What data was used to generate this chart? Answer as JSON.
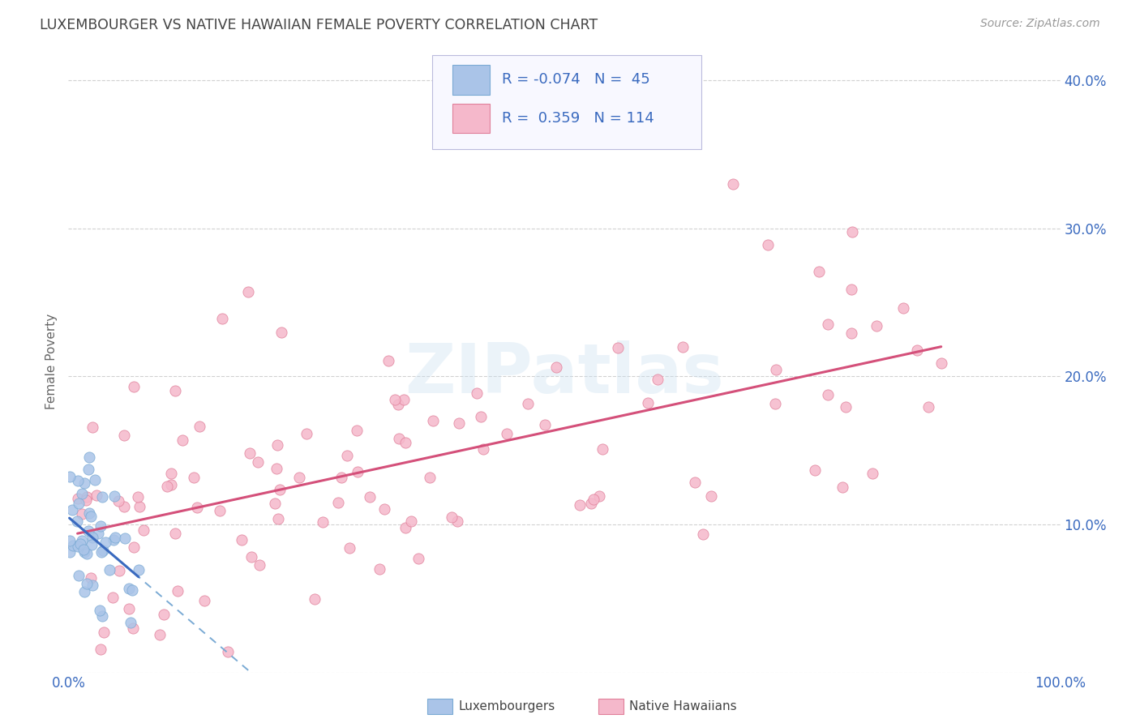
{
  "title": "LUXEMBOURGER VS NATIVE HAWAIIAN FEMALE POVERTY CORRELATION CHART",
  "source": "Source: ZipAtlas.com",
  "ylabel": "Female Poverty",
  "xlim": [
    0.0,
    1.0
  ],
  "ylim": [
    0.0,
    0.42
  ],
  "yticks": [
    0.0,
    0.1,
    0.2,
    0.3,
    0.4
  ],
  "right_ytick_labels": [
    "10.0%",
    "20.0%",
    "30.0%",
    "40.0%"
  ],
  "right_yticks": [
    0.1,
    0.2,
    0.3,
    0.4
  ],
  "xtick_labels": [
    "0.0%",
    "",
    "",
    "",
    "",
    "",
    "",
    "",
    "",
    "",
    "100.0%"
  ],
  "lux_color": "#aac4e8",
  "lux_edge_color": "#7aaad4",
  "hawaiian_color": "#f5b8cb",
  "hawaiian_edge_color": "#e0809a",
  "trendline_blue_solid": "#3a6abf",
  "trendline_blue_dash": "#7aaad4",
  "trendline_pink": "#d4507a",
  "R_lux": -0.074,
  "N_lux": 45,
  "R_hawaiian": 0.359,
  "N_hawaiian": 114,
  "legend_color": "#3a6abf",
  "watermark": "ZIPatlas",
  "background_color": "#ffffff",
  "grid_color": "#cccccc",
  "axis_label_color": "#3a6abf",
  "title_color": "#444444"
}
